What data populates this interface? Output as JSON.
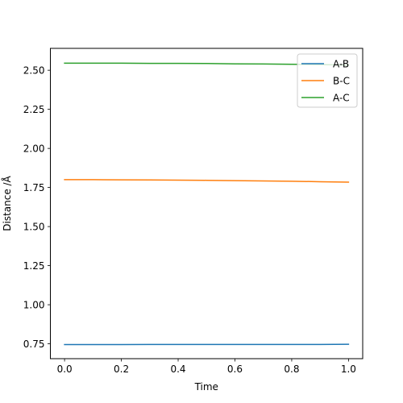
{
  "chart_data": {
    "type": "line",
    "title": "",
    "xlabel": "Time",
    "ylabel": "Distance /Å",
    "xlim": [
      -0.05,
      1.05
    ],
    "ylim": [
      0.655,
      2.64
    ],
    "xticks": [
      0.0,
      0.2,
      0.4,
      0.6,
      0.8,
      1.0
    ],
    "xtick_labels": [
      "0.0",
      "0.2",
      "0.4",
      "0.6",
      "0.8",
      "1.0"
    ],
    "yticks": [
      0.75,
      1.0,
      1.25,
      1.5,
      1.75,
      2.0,
      2.25,
      2.5
    ],
    "ytick_labels": [
      "0.75",
      "1.00",
      "1.25",
      "1.50",
      "1.75",
      "2.00",
      "2.25",
      "2.50"
    ],
    "grid": false,
    "legend_position": "top-right",
    "x": [
      0.0,
      0.1,
      0.2,
      0.3,
      0.4,
      0.5,
      0.6,
      0.7,
      0.8,
      0.9,
      1.0
    ],
    "series": [
      {
        "name": "A-B",
        "color": "#1f77b4",
        "values": [
          0.745,
          0.745,
          0.745,
          0.746,
          0.746,
          0.746,
          0.746,
          0.746,
          0.746,
          0.746,
          0.747
        ]
      },
      {
        "name": "B-C",
        "color": "#ff7f0e",
        "values": [
          1.8,
          1.8,
          1.799,
          1.798,
          1.797,
          1.796,
          1.794,
          1.792,
          1.79,
          1.787,
          1.784
        ]
      },
      {
        "name": "A-C",
        "color": "#2ca02c",
        "values": [
          2.545,
          2.545,
          2.545,
          2.544,
          2.544,
          2.543,
          2.541,
          2.54,
          2.538,
          2.536,
          2.533
        ]
      }
    ]
  }
}
